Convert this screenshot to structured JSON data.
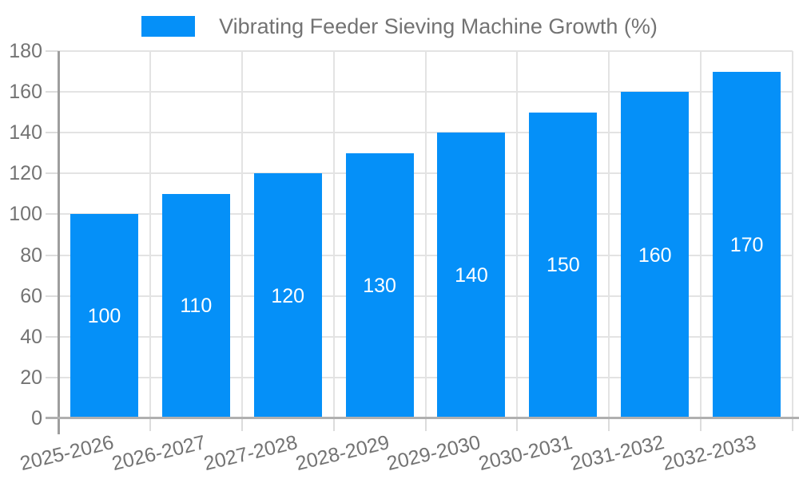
{
  "legend": {
    "label": "Vibrating Feeder Sieving Machine Growth (%)"
  },
  "chart_data": {
    "type": "bar",
    "title": "Vibrating Feeder Sieving Machine Growth (%)",
    "categories": [
      "2025-2026",
      "2026-2027",
      "2027-2028",
      "2028-2029",
      "2029-2030",
      "2030-2031",
      "2031-2032",
      "2032-2033"
    ],
    "values": [
      100,
      110,
      120,
      130,
      140,
      150,
      160,
      170
    ],
    "series": [
      {
        "name": "Vibrating Feeder Sieving Machine Growth (%)",
        "values": [
          100,
          110,
          120,
          130,
          140,
          150,
          160,
          170
        ]
      }
    ],
    "xlabel": "",
    "ylabel": "",
    "ylim": [
      0,
      180
    ],
    "ytick_step": 20,
    "yticks": [
      0,
      20,
      40,
      60,
      80,
      100,
      120,
      140,
      160,
      180
    ],
    "grid": true,
    "legend_position": "top-center",
    "data_labels_position": "inside-center",
    "colors": {
      "bar": "#0590F8",
      "axis_text": "#737373",
      "data_label": "#FFFFFF",
      "gridline": "#E3E3E3",
      "tick": "#DCDCDC",
      "y_axis_line": "#9E9E9E",
      "x_axis_line": "#B0B0B0",
      "background": "#FFFFFF"
    }
  }
}
